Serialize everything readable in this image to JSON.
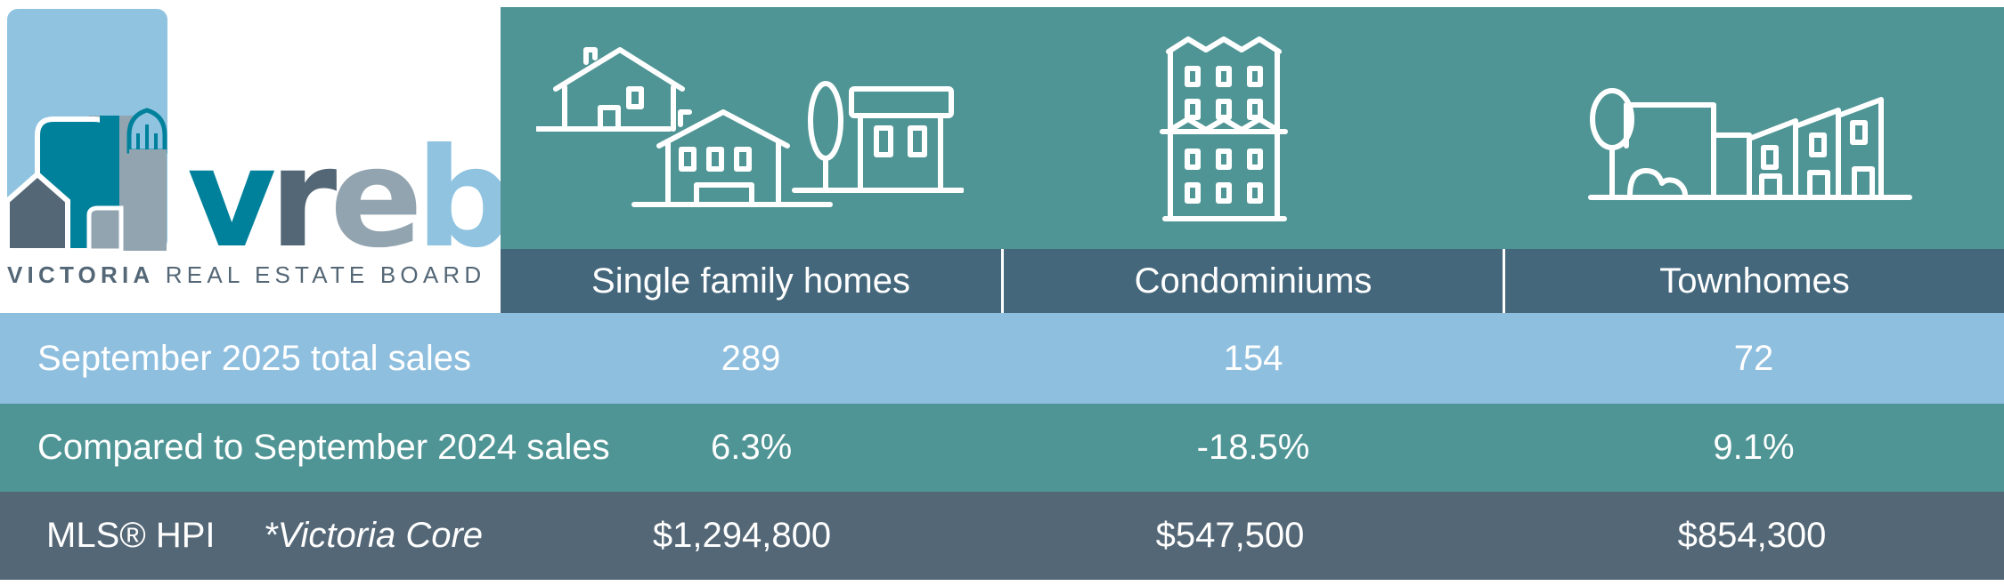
{
  "logo": {
    "wordmark": "vreb",
    "subtitle_bold": "VICTORIA",
    "subtitle_rest": "REAL ESTATE BOARD",
    "colors": {
      "sky": "#8fc3e0",
      "teal": "#00819b",
      "slate": "#546776",
      "grey": "#92a4b0"
    }
  },
  "categories": [
    {
      "label": "Single family homes",
      "icon": "single-family-houses-icon"
    },
    {
      "label": "Condominiums",
      "icon": "condominium-building-icon"
    },
    {
      "label": "Townhomes",
      "icon": "townhouse-row-icon"
    }
  ],
  "rows": {
    "sales": {
      "label": "September 2025 total sales",
      "values": [
        "289",
        "154",
        "72"
      ]
    },
    "compare": {
      "label": "Compared to September 2024 sales",
      "values": [
        "6.3%",
        "-18.5%",
        "9.1%"
      ]
    },
    "hpi": {
      "label": "MLS® HPI",
      "note": "*Victoria Core",
      "values": [
        "$1,294,800",
        "$547,500",
        "$854,300"
      ]
    }
  },
  "colors": {
    "icon_panel": "#509595",
    "header_bar": "#44677c",
    "sales_row": "#8fbfdf",
    "compare_row": "#509595",
    "hpi_row": "#546776",
    "text": "#ffffff"
  }
}
